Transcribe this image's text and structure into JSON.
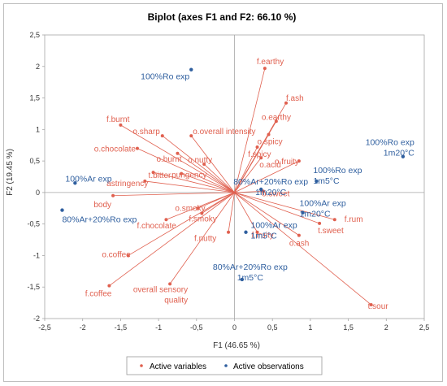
{
  "chart_data": {
    "type": "scatter",
    "title": "Biplot (axes F1 and F2: 66.10 %)",
    "xlabel": "F1 (46.65 %)",
    "ylabel": "F2 (19.45 %)",
    "xlim": [
      -2.5,
      2.5
    ],
    "ylim": [
      -2.0,
      2.5
    ],
    "xticks": [
      "-2,5",
      "-2",
      "-1,5",
      "-1",
      "-0,5",
      "0",
      "0,5",
      "1",
      "1,5",
      "2",
      "2,5"
    ],
    "yticks": [
      "-2",
      "-1,5",
      "-1",
      "-0,5",
      "0",
      "0,5",
      "1",
      "1,5",
      "2",
      "2,5"
    ],
    "legend": [
      {
        "label": "Active variables",
        "color": "#e0604f"
      },
      {
        "label": "Active observations",
        "color": "#2f5f9f"
      }
    ],
    "variables": [
      {
        "label": "f.earthy",
        "x": 0.4,
        "y": 1.97
      },
      {
        "label": "f.ash",
        "x": 0.68,
        "y": 1.42
      },
      {
        "label": "o.earthy",
        "x": 0.55,
        "y": 1.13
      },
      {
        "label": "o.spicy",
        "x": 0.45,
        "y": 0.92
      },
      {
        "label": "f.burnt",
        "x": -1.5,
        "y": 1.07
      },
      {
        "label": "o.sharp",
        "x": -0.95,
        "y": 0.9
      },
      {
        "label": "o.overall intensity",
        "x": -0.57,
        "y": 0.9
      },
      {
        "label": "o.chocolate",
        "x": -1.28,
        "y": 0.7
      },
      {
        "label": "o.burnt",
        "x": -0.75,
        "y": 0.62
      },
      {
        "label": "f.spicy",
        "x": 0.3,
        "y": 0.72
      },
      {
        "label": "o.acid",
        "x": 0.35,
        "y": 0.55
      },
      {
        "label": "o.nutty",
        "x": -0.4,
        "y": 0.45
      },
      {
        "label": "o.fruity",
        "x": 0.85,
        "y": 0.5
      },
      {
        "label": "t.bitter",
        "x": -1.07,
        "y": 0.32
      },
      {
        "label": "pungency",
        "x": -0.7,
        "y": 0.3
      },
      {
        "label": "astringency",
        "x": -1.18,
        "y": 0.18
      },
      {
        "label": "o.sweet",
        "x": 0.38,
        "y": 0.02
      },
      {
        "label": "body",
        "x": -1.6,
        "y": -0.05
      },
      {
        "label": "o.smoky",
        "x": -0.48,
        "y": -0.25
      },
      {
        "label": "f.smoky",
        "x": -0.43,
        "y": -0.33
      },
      {
        "label": "f.chocolate",
        "x": -0.9,
        "y": -0.43
      },
      {
        "label": "f.rum",
        "x": 1.32,
        "y": -0.43
      },
      {
        "label": "t.sweet",
        "x": 1.12,
        "y": -0.49
      },
      {
        "label": "f.nutty",
        "x": -0.08,
        "y": -0.63
      },
      {
        "label": "f.fruity",
        "x": 0.3,
        "y": -0.63
      },
      {
        "label": "o.ash",
        "x": 0.85,
        "y": -0.68
      },
      {
        "label": "o.coffee",
        "x": -1.4,
        "y": -1.0
      },
      {
        "label": "f.coffee",
        "x": -1.65,
        "y": -1.48
      },
      {
        "label": "overall sensory quality",
        "x": -0.85,
        "y": -1.45
      },
      {
        "label": "t.sour",
        "x": 1.8,
        "y": -1.78
      }
    ],
    "observations": [
      {
        "label": "100%Ro exp",
        "x": -0.57,
        "y": 1.95
      },
      {
        "label": "100%Ro exp 1m20°C",
        "x": 2.22,
        "y": 0.57
      },
      {
        "label": "100%Ro exp 1m5°C",
        "x": 1.08,
        "y": 0.18
      },
      {
        "label": "100%Ar exp",
        "x": -2.1,
        "y": 0.15
      },
      {
        "label": "80%Ar+20%Ro exp 1m20°C",
        "x": 0.35,
        "y": 0.05
      },
      {
        "label": "100%Ar exp 1m20°C",
        "x": 0.9,
        "y": -0.32
      },
      {
        "label": "80%Ar+20%Ro exp",
        "x": -2.27,
        "y": -0.28
      },
      {
        "label": "100%Ar exp 1m5°C",
        "x": 0.15,
        "y": -0.63
      },
      {
        "label": "80%Ar+20%Ro exp 1m5°C",
        "x": 0.1,
        "y": -1.38
      }
    ]
  }
}
